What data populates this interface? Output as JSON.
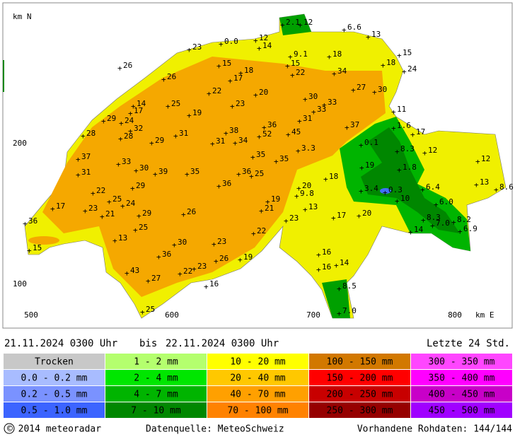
{
  "map": {
    "axis_labels": {
      "y_unit": "km N",
      "x_unit": "km E",
      "y_ticks": [
        "200",
        "100"
      ],
      "x_ticks": [
        "500",
        "600",
        "700",
        "800"
      ]
    },
    "stations": [
      "2.1",
      "12",
      "6.6",
      "13",
      "12",
      "0.0",
      "23",
      "14",
      "9.1",
      "18",
      "15",
      "26",
      "15",
      "15",
      "18",
      "18",
      "24",
      "26",
      "17",
      "22",
      "34",
      "27",
      "30",
      "22",
      "20",
      "30",
      "33",
      "14",
      "25",
      "23",
      "33",
      "11",
      "17",
      "19",
      "29",
      "24",
      "31",
      "37",
      "32",
      "36",
      "1.6",
      "17",
      "28",
      "28",
      "31",
      "38",
      "52",
      "45",
      "29",
      "31",
      "34",
      "0.1",
      "3.3",
      "8.3",
      "12",
      "37",
      "35",
      "35",
      "12",
      "33",
      "30",
      "19",
      "1.8",
      "31",
      "39",
      "35",
      "36",
      "25",
      "18",
      "13",
      "8.6",
      "36",
      "29",
      "20",
      "22",
      "3.4",
      "0.3",
      "6.4",
      "9.8",
      "25",
      "24",
      "10",
      "19",
      "17",
      "23",
      "26",
      "21",
      "13",
      "6.0",
      "29",
      "21",
      "17",
      "20",
      "23",
      "36",
      "8.2",
      "8.3",
      "7.0",
      "25",
      "22",
      "14",
      "6.9",
      "13",
      "30",
      "23",
      "15",
      "16",
      "36",
      "26",
      "19",
      "16",
      "14",
      "43",
      "23",
      "22",
      "27",
      "16",
      "8.5",
      "25",
      "7.0"
    ]
  },
  "header": {
    "from": "21.11.2024 0300 Uhr",
    "separator": "bis",
    "to": "22.11.2024 0300 Uhr",
    "window": "Letzte 24 Std."
  },
  "legend": [
    {
      "label": "Trocken",
      "color": "#c8c8c8"
    },
    {
      "label": "0.0 - 0.2 mm",
      "color": "#a8bcff"
    },
    {
      "label": "0.2 - 0.5 mm",
      "color": "#7a92ff"
    },
    {
      "label": "0.5 - 1.0 mm",
      "color": "#3c64ff"
    },
    {
      "label": "1 - 2 mm",
      "color": "#b4ff6e"
    },
    {
      "label": "2 - 4 mm",
      "color": "#00e600"
    },
    {
      "label": "4 - 7 mm",
      "color": "#00b400"
    },
    {
      "label": "7 - 10 mm",
      "color": "#008700"
    },
    {
      "label": "10 - 20 mm",
      "color": "#ffff00"
    },
    {
      "label": "20 - 40 mm",
      "color": "#ffc800"
    },
    {
      "label": "40 - 70 mm",
      "color": "#ffa000"
    },
    {
      "label": "70 - 100 mm",
      "color": "#ff8200"
    },
    {
      "label": "100 - 150 mm",
      "color": "#d27800"
    },
    {
      "label": "150 - 200 mm",
      "color": "#ff0000"
    },
    {
      "label": "200 - 250 mm",
      "color": "#c80000"
    },
    {
      "label": "250 - 300 mm",
      "color": "#960000"
    },
    {
      "label": "300 - 350 mm",
      "color": "#ff46ff"
    },
    {
      "label": "350 - 400 mm",
      "color": "#ff00ff"
    },
    {
      "label": "400 - 450 mm",
      "color": "#c800c8"
    },
    {
      "label": "450 - 500 mm",
      "color": "#a000ff"
    }
  ],
  "footer": {
    "copyright": "© 2014 meteoradar",
    "source": "Datenquelle: MeteoSchweiz",
    "raw_data": "Vorhandene Rohdaten: 144/144"
  }
}
